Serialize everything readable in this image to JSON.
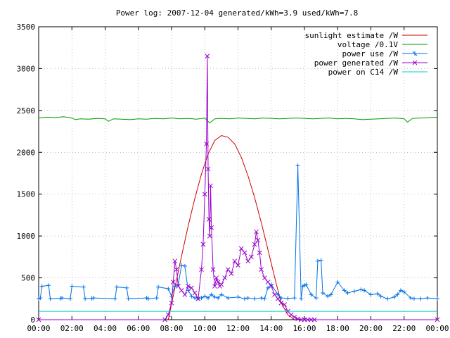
{
  "chart_data": {
    "type": "line",
    "title": "Power log: 2007-12-04 generated/kWh=3.9 used/kWh=7.8",
    "xlabel": "",
    "ylabel": "",
    "xlim": [
      0,
      24
    ],
    "ylim": [
      0,
      3500
    ],
    "grid": true,
    "legend_position": "top-right",
    "x_tick_labels": [
      "00:00",
      "02:00",
      "04:00",
      "06:00",
      "08:00",
      "10:00",
      "12:00",
      "14:00",
      "16:00",
      "18:00",
      "20:00",
      "22:00",
      "00:00"
    ],
    "y_tick_labels": [
      "0",
      "500",
      "1000",
      "1500",
      "2000",
      "2500",
      "3000",
      "3500"
    ],
    "series": [
      {
        "name": "sunlight estimate /W",
        "color": "#cc0000",
        "marker": "none",
        "x": [
          7.8,
          8.2,
          8.6,
          9.0,
          9.4,
          9.8,
          10.2,
          10.6,
          11.0,
          11.4,
          11.8,
          12.2,
          12.6,
          13.0,
          13.4,
          13.8,
          14.2,
          14.6,
          15.0,
          15.4
        ],
        "y": [
          0,
          380,
          760,
          1120,
          1450,
          1740,
          1980,
          2140,
          2200,
          2180,
          2100,
          1940,
          1720,
          1460,
          1160,
          840,
          510,
          200,
          60,
          0
        ]
      },
      {
        "name": "voltage /0.1V",
        "color": "#009900",
        "marker": "none",
        "x": [
          0,
          0.5,
          1,
          1.5,
          2,
          2.2,
          2.5,
          3,
          3.5,
          4,
          4.2,
          4.5,
          5,
          5.5,
          6,
          6.5,
          7,
          7.5,
          8,
          8.5,
          9,
          9.5,
          10,
          10.3,
          10.6,
          11,
          11.5,
          12,
          12.5,
          13,
          13.5,
          14,
          14.5,
          15,
          15.5,
          16,
          16.5,
          17,
          17.5,
          18,
          18.5,
          19,
          19.5,
          20,
          20.5,
          21,
          21.5,
          22,
          22.2,
          22.5,
          23,
          23.5,
          24
        ],
        "y": [
          2410,
          2420,
          2415,
          2425,
          2410,
          2390,
          2400,
          2395,
          2405,
          2400,
          2370,
          2400,
          2395,
          2390,
          2400,
          2395,
          2405,
          2400,
          2410,
          2400,
          2405,
          2395,
          2410,
          2350,
          2400,
          2405,
          2400,
          2410,
          2405,
          2400,
          2410,
          2405,
          2400,
          2405,
          2410,
          2405,
          2400,
          2405,
          2410,
          2400,
          2405,
          2400,
          2390,
          2395,
          2400,
          2405,
          2410,
          2400,
          2360,
          2405,
          2410,
          2415,
          2420
        ]
      },
      {
        "name": "power use /W",
        "color": "#0073e6",
        "marker": "plus",
        "x": [
          0,
          0.1,
          0.2,
          0.6,
          0.7,
          1.3,
          1.4,
          1.9,
          2.0,
          2.7,
          2.8,
          3.2,
          3.3,
          4.6,
          4.7,
          5.3,
          5.4,
          6.5,
          6.6,
          7.1,
          7.2,
          7.8,
          8.0,
          8.2,
          8.4,
          8.6,
          8.8,
          9.0,
          9.2,
          9.4,
          9.6,
          9.8,
          10.0,
          10.2,
          10.4,
          10.6,
          10.8,
          11.0,
          11.4,
          12.0,
          12.4,
          12.6,
          13.0,
          13.4,
          13.6,
          13.8,
          14.0,
          14.4,
          14.6,
          15.0,
          15.4,
          15.6,
          15.8,
          15.9,
          16.0,
          16.1,
          16.4,
          16.7,
          16.8,
          17.0,
          17.1,
          17.4,
          17.6,
          18.0,
          18.4,
          18.6,
          19.0,
          19.4,
          19.6,
          20.0,
          20.4,
          20.6,
          21.0,
          21.4,
          21.6,
          21.8,
          22.0,
          22.4,
          22.6,
          23.0,
          23.4,
          24.0
        ],
        "y": [
          250,
          260,
          400,
          410,
          250,
          255,
          260,
          250,
          400,
          390,
          250,
          255,
          260,
          250,
          390,
          380,
          250,
          260,
          250,
          260,
          390,
          370,
          280,
          400,
          420,
          650,
          640,
          350,
          280,
          260,
          255,
          260,
          280,
          260,
          300,
          270,
          260,
          300,
          260,
          270,
          250,
          260,
          250,
          260,
          250,
          380,
          420,
          300,
          260,
          255,
          260,
          1840,
          250,
          400,
          410,
          420,
          300,
          260,
          700,
          710,
          320,
          280,
          300,
          450,
          350,
          320,
          340,
          360,
          350,
          300,
          310,
          280,
          250,
          270,
          300,
          350,
          330,
          260,
          250,
          250,
          260,
          250
        ]
      },
      {
        "name": "power generated /W",
        "color": "#9900cc",
        "marker": "cross",
        "x": [
          0,
          7.6,
          7.8,
          8.0,
          8.1,
          8.2,
          8.3,
          8.4,
          8.6,
          8.8,
          9.0,
          9.2,
          9.4,
          9.6,
          9.8,
          9.9,
          10.0,
          10.1,
          10.15,
          10.2,
          10.25,
          10.3,
          10.35,
          10.4,
          10.5,
          10.6,
          10.7,
          10.8,
          10.9,
          11.0,
          11.2,
          11.4,
          11.6,
          11.8,
          12.0,
          12.2,
          12.4,
          12.6,
          12.8,
          13.0,
          13.1,
          13.2,
          13.3,
          13.4,
          13.6,
          13.8,
          14.0,
          14.2,
          14.4,
          14.6,
          14.8,
          15.0,
          15.2,
          15.4,
          15.6,
          15.8,
          16.0,
          16.2,
          16.4,
          16.6,
          24.0
        ],
        "y": [
          0,
          0,
          60,
          200,
          450,
          700,
          600,
          400,
          350,
          300,
          400,
          380,
          320,
          250,
          600,
          900,
          1500,
          2100,
          3150,
          1800,
          1200,
          1000,
          1600,
          1100,
          600,
          400,
          500,
          450,
          400,
          420,
          500,
          600,
          550,
          700,
          650,
          850,
          800,
          700,
          750,
          900,
          1050,
          950,
          800,
          600,
          500,
          450,
          400,
          300,
          250,
          200,
          180,
          100,
          60,
          30,
          10,
          0,
          0,
          0,
          0,
          0,
          0
        ]
      },
      {
        "name": "power on C14 /W",
        "color": "#00cccc",
        "marker": "none",
        "x": [
          0,
          2,
          4,
          6,
          8,
          10,
          12,
          14,
          16,
          18,
          20,
          22,
          24
        ],
        "y": [
          100,
          100,
          100,
          100,
          100,
          100,
          100,
          100,
          100,
          100,
          100,
          100,
          100
        ]
      }
    ]
  }
}
